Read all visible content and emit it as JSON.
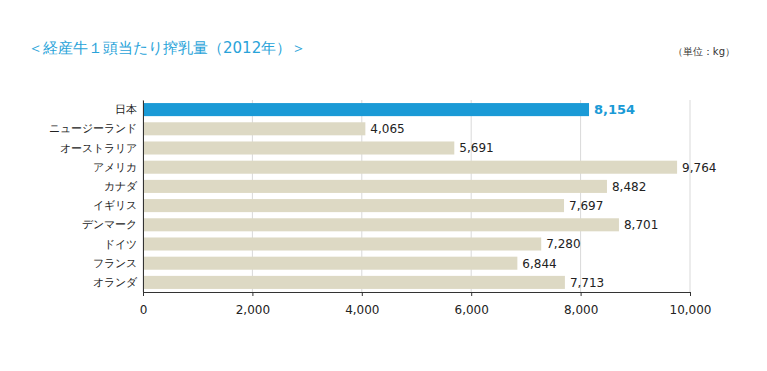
{
  "chart_data": {
    "type": "bar",
    "orientation": "horizontal",
    "title": "＜経産牛１頭当たり搾乳量（2012年）＞",
    "x_label": "（単位：kg）",
    "categories": [
      "日本",
      "ニュージーランド",
      "オーストラリア",
      "アメリカ",
      "カナダ",
      "イギリス",
      "デンマーク",
      "ドイツ",
      "フランス",
      "オランダ"
    ],
    "values": [
      8154,
      4065,
      5691,
      9764,
      8482,
      7697,
      8701,
      7280,
      6844,
      7713
    ],
    "value_labels": [
      "8,154",
      "4,065",
      "5,691",
      "9,764",
      "8,482",
      "7,697",
      "8,701",
      "7,280",
      "6,844",
      "7,713"
    ],
    "colors": [
      "#1a9ad6",
      "#ddd9c4",
      "#ddd9c4",
      "#ddd9c4",
      "#ddd9c4",
      "#ddd9c4",
      "#ddd9c4",
      "#ddd9c4",
      "#ddd9c4",
      "#ddd9c4"
    ],
    "xlim": [
      0,
      10000
    ],
    "xticks": [
      0,
      {
        "value": 2000,
        "label": "2,000"
      },
      {
        "value": 4000,
        "label": "4,000"
      },
      {
        "value": 6000,
        "label": "6,000"
      },
      {
        "value": 8000,
        "label": "8,000"
      },
      {
        "value": 10000,
        "label": "10,000"
      }
    ],
    "grid": true,
    "data_labels": true
  }
}
